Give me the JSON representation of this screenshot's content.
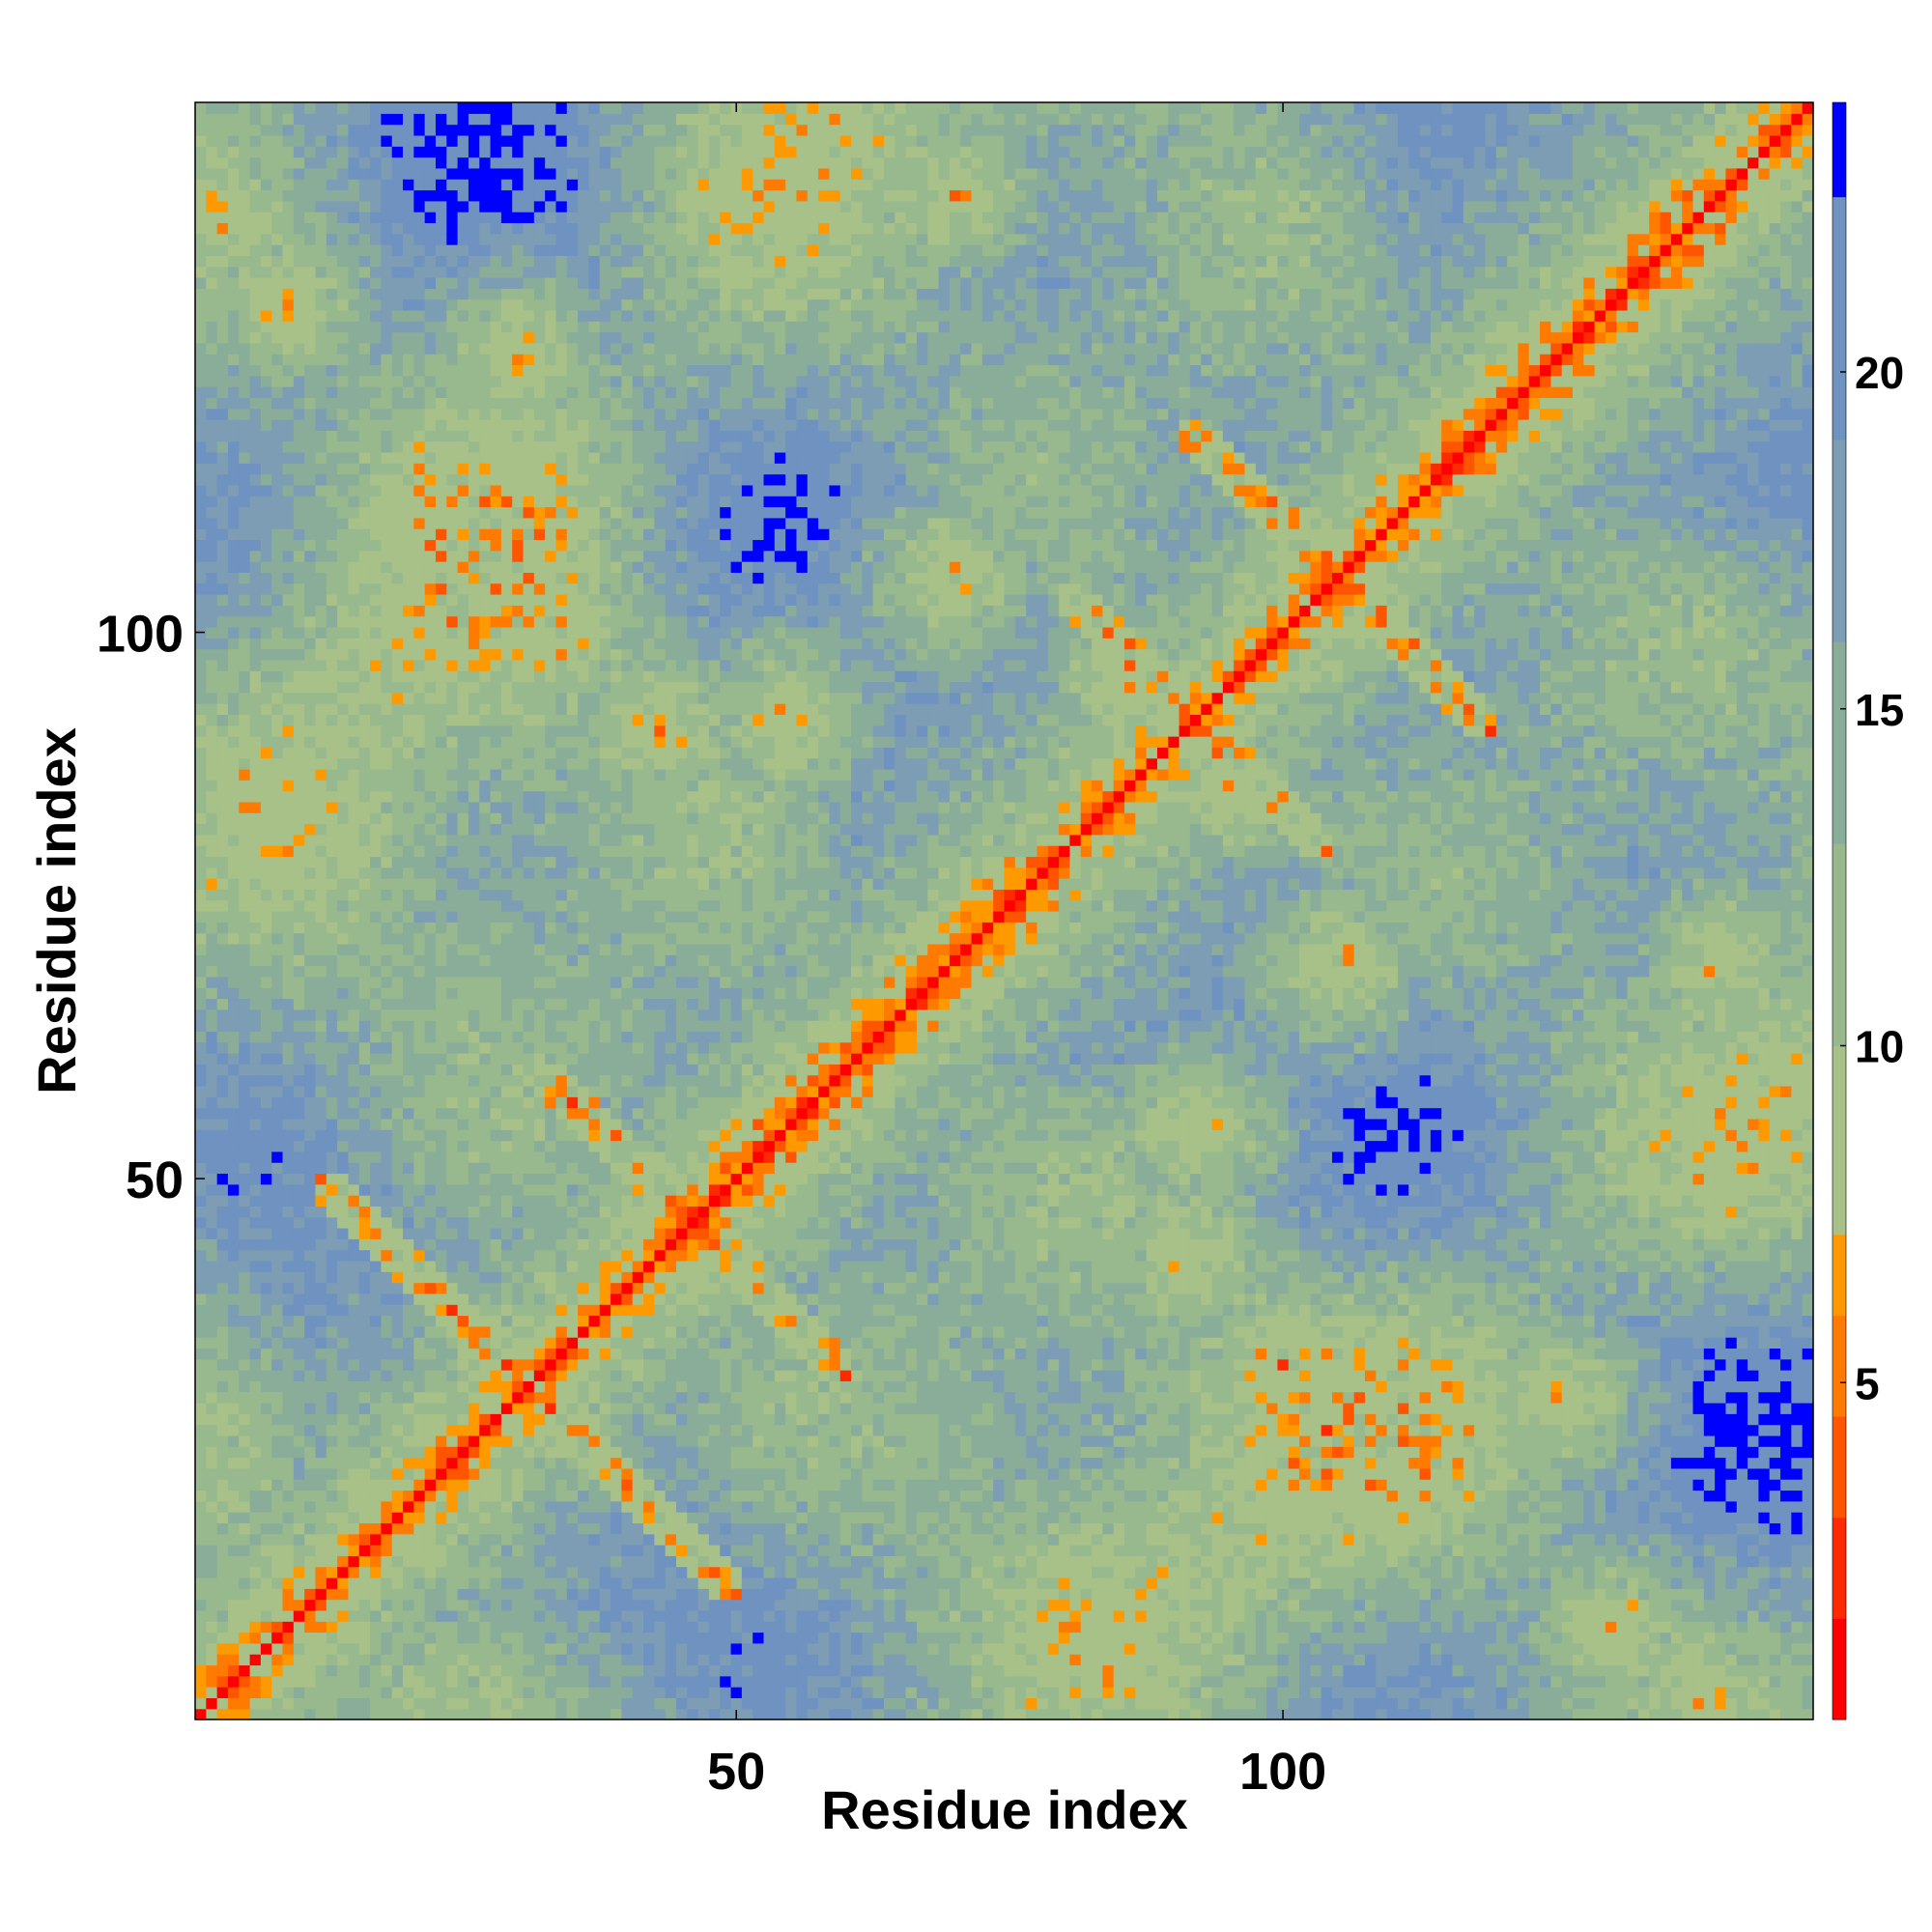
{
  "chart_data": {
    "type": "heatmap",
    "title": "",
    "xlabel": "Residue index",
    "ylabel": "Residue index",
    "n_residues": 148,
    "x_range": [
      1,
      148
    ],
    "y_range": [
      1,
      148
    ],
    "x_ticks": [
      50,
      100
    ],
    "y_ticks": [
      50,
      100
    ],
    "x_tick_labels": [
      "50",
      "100"
    ],
    "y_tick_labels": [
      "50",
      "100"
    ],
    "colorbar": {
      "range": [
        0,
        24
      ],
      "ticks": [
        5,
        10,
        15,
        20
      ],
      "tick_labels": [
        "5",
        "10",
        "15",
        "20"
      ],
      "bins": [
        {
          "min": 0,
          "max": 1.5,
          "color": "#ff0000"
        },
        {
          "min": 1.5,
          "max": 3,
          "color": "#ff2a00"
        },
        {
          "min": 3,
          "max": 4.5,
          "color": "#ff5500"
        },
        {
          "min": 4.5,
          "max": 6,
          "color": "#ff7a00"
        },
        {
          "min": 6,
          "max": 7.2,
          "color": "#ff9900"
        },
        {
          "min": 7.2,
          "max": 10,
          "color": "#a7c188"
        },
        {
          "min": 10,
          "max": 13,
          "color": "#98b98e"
        },
        {
          "min": 13,
          "max": 16,
          "color": "#8aad9a"
        },
        {
          "min": 16,
          "max": 19,
          "color": "#7c9db3"
        },
        {
          "min": 19,
          "max": 22.6,
          "color": "#6f92c0"
        },
        {
          "min": 22.6,
          "max": 24,
          "color": "#0000ff"
        }
      ]
    },
    "matrix_description": "symmetric residue-residue distance map; distances below 8 in red-orange along the main diagonal and at contact points, mid distances in green-grey, distances above 22.6 in blue",
    "structure": {
      "diagonal_contacts": true,
      "antiparallel_strands": [
        [
          22,
          40,
          6
        ],
        [
          40,
          52,
          4
        ],
        [
          88,
          96,
          4
        ],
        [
          100,
          110,
          5
        ]
      ],
      "parallel_helical_band_near": [
        [
          55,
          65
        ],
        [
          128,
          140
        ]
      ],
      "contact_clusters": [
        {
          "i": 3,
          "j": 138,
          "value": 6
        },
        {
          "i": 33,
          "j": 100,
          "value": 5
        },
        {
          "i": 43,
          "j": 91,
          "value": 6
        },
        {
          "i": 55,
          "j": 92,
          "value": 6
        },
        {
          "i": 70,
          "j": 105,
          "value": 6
        },
        {
          "i": 95,
          "j": 86,
          "value": 6
        },
        {
          "i": 30,
          "j": 125,
          "value": 6
        },
        {
          "i": 130,
          "j": 9,
          "value": 6
        },
        {
          "i": 140,
          "j": 70,
          "value": 6
        }
      ]
    }
  }
}
